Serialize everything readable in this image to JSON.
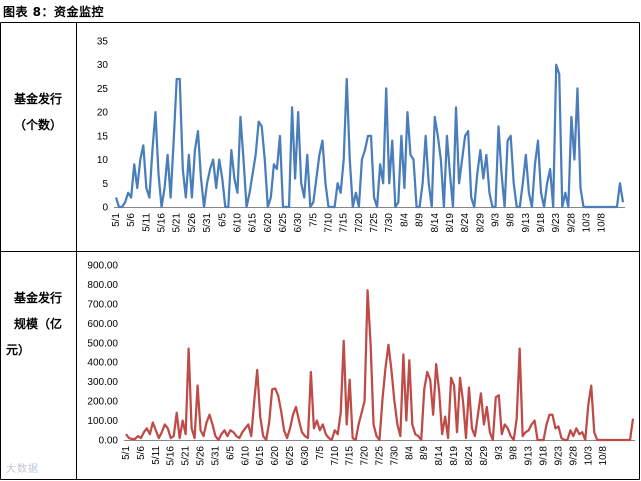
{
  "caption": "图表 8：资金监控",
  "watermark": "大数据",
  "colors": {
    "top_line": "#4a7ebb",
    "bottom_line": "#be4b48",
    "border": "#000000"
  },
  "chart_data": [
    {
      "type": "line",
      "row_label_lines": [
        "基金发行",
        "（个数）"
      ],
      "ylim": [
        0,
        35
      ],
      "yticks": [
        0,
        5,
        10,
        15,
        20,
        25,
        30,
        35
      ],
      "ytick_labels": [
        "0",
        "5",
        "10",
        "15",
        "20",
        "25",
        "30",
        "35"
      ],
      "xtick_labels": [
        "5/1",
        "5/6",
        "5/11",
        "5/16",
        "5/21",
        "5/26",
        "5/31",
        "6/5",
        "6/10",
        "6/15",
        "6/20",
        "6/25",
        "6/30",
        "7/5",
        "7/10",
        "7/15",
        "7/20",
        "7/25",
        "7/30",
        "8/4",
        "8/9",
        "8/14",
        "8/19",
        "8/24",
        "8/29",
        "9/3",
        "9/8",
        "9/13",
        "9/18",
        "9/23",
        "9/28",
        "10/3",
        "10/8"
      ],
      "values": [
        2,
        0,
        0,
        1,
        3,
        2,
        9,
        4,
        10,
        13,
        4,
        2,
        12,
        20,
        7,
        0,
        4,
        11,
        2,
        14,
        27,
        27,
        8,
        2,
        11,
        2,
        12,
        16,
        6,
        0,
        5,
        8,
        10,
        4,
        10,
        6,
        0,
        0,
        12,
        6,
        3,
        19,
        10,
        0,
        3,
        7,
        11,
        18,
        17,
        10,
        0,
        2,
        9,
        8,
        15,
        0,
        0,
        0,
        21,
        6,
        20,
        5,
        2,
        11,
        0,
        1,
        6,
        11,
        14,
        5,
        0,
        0,
        0,
        5,
        3,
        10,
        27,
        10,
        0,
        3,
        0,
        10,
        12,
        15,
        15,
        2,
        0,
        9,
        5,
        25,
        5,
        14,
        0,
        1,
        15,
        4,
        20,
        11,
        10,
        0,
        0,
        5,
        15,
        5,
        0,
        19,
        15,
        10,
        0,
        15,
        7,
        0,
        21,
        5,
        10,
        15,
        16,
        2,
        0,
        7,
        12,
        6,
        11,
        3,
        0,
        0,
        17,
        7,
        0,
        14,
        15,
        5,
        0,
        0,
        5,
        11,
        3,
        0,
        9,
        14,
        3,
        0,
        5,
        8,
        0,
        30,
        28,
        0,
        3,
        0,
        19,
        10,
        25,
        4,
        0,
        0,
        0,
        0,
        0,
        0,
        0,
        0,
        0,
        0,
        0,
        0,
        5,
        1
      ]
    },
    {
      "type": "line",
      "row_label_lines": [
        "基金发行",
        "规模（亿",
        "元）"
      ],
      "ylim": [
        0,
        900
      ],
      "yticks": [
        0,
        100,
        200,
        300,
        400,
        500,
        600,
        700,
        800,
        900
      ],
      "ytick_labels": [
        "0.00",
        "100.00",
        "200.00",
        "300.00",
        "400.00",
        "500.00",
        "600.00",
        "700.00",
        "800.00",
        "900.00"
      ],
      "xtick_labels": [
        "5/1",
        "5/6",
        "5/11",
        "5/16",
        "5/21",
        "5/26",
        "5/31",
        "6/5",
        "6/10",
        "6/15",
        "6/20",
        "6/25",
        "6/30",
        "7/5",
        "7/10",
        "7/15",
        "7/20",
        "7/25",
        "7/30",
        "8/4",
        "8/9",
        "8/14",
        "8/19",
        "8/24",
        "8/29",
        "9/3",
        "9/8",
        "9/13",
        "9/18",
        "9/23",
        "9/28",
        "10/3",
        "10/8"
      ],
      "values": [
        30,
        10,
        5,
        5,
        20,
        10,
        40,
        60,
        30,
        90,
        50,
        10,
        40,
        80,
        60,
        10,
        20,
        140,
        10,
        100,
        30,
        470,
        60,
        10,
        280,
        50,
        20,
        90,
        130,
        80,
        20,
        0,
        30,
        50,
        20,
        50,
        40,
        20,
        10,
        40,
        60,
        80,
        20,
        200,
        360,
        120,
        20,
        0,
        90,
        260,
        265,
        230,
        150,
        50,
        10,
        60,
        130,
        170,
        100,
        40,
        20,
        10,
        350,
        60,
        100,
        50,
        80,
        30,
        10,
        0,
        50,
        30,
        140,
        510,
        80,
        310,
        10,
        0,
        80,
        140,
        200,
        770,
        500,
        80,
        20,
        0,
        210,
        370,
        490,
        360,
        200,
        80,
        20,
        440,
        100,
        410,
        80,
        30,
        20,
        0,
        260,
        350,
        310,
        130,
        390,
        250,
        30,
        120,
        10,
        320,
        280,
        40,
        320,
        200,
        10,
        270,
        60,
        20,
        130,
        240,
        80,
        170,
        40,
        0,
        220,
        230,
        30,
        80,
        60,
        20,
        0,
        110,
        470,
        20,
        40,
        50,
        80,
        100,
        0,
        0,
        0,
        80,
        130,
        130,
        60,
        70,
        10,
        0,
        0,
        50,
        20,
        60,
        30,
        40,
        0,
        180,
        280,
        40,
        0,
        0,
        0,
        0,
        0,
        0,
        0,
        0,
        0,
        0,
        0,
        0,
        110
      ]
    }
  ]
}
